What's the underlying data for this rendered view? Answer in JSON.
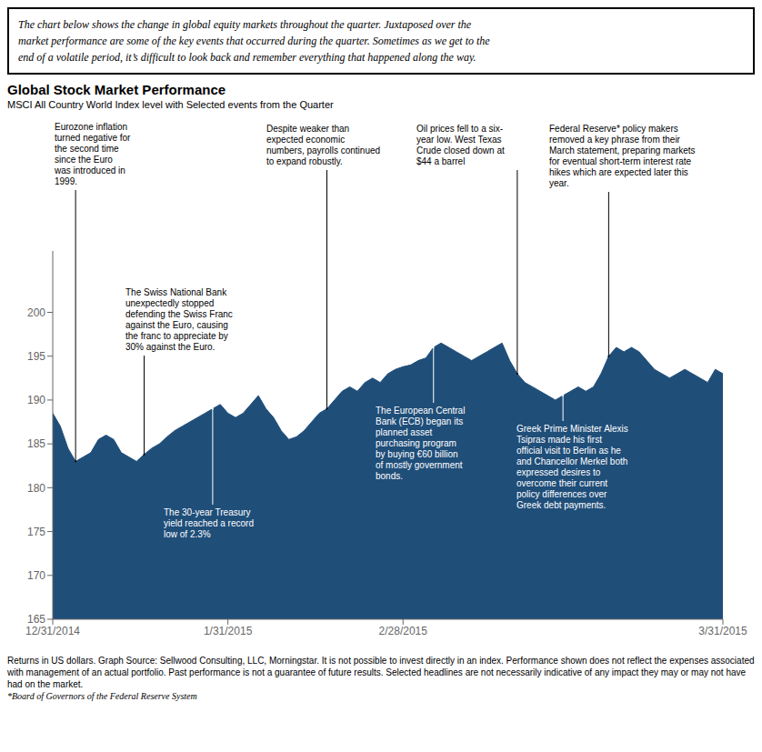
{
  "chart_data": {
    "type": "area",
    "title": "Global Stock Market Performance",
    "subtitle": "MSCI All Country World Index level with Selected events from the Quarter",
    "header": "The chart below shows the change in global equity markets throughout the quarter. Juxtaposed over the\nmarket performance are some of the key events that occurred during the quarter. Sometimes as we get to the\nend of a volatile period, it’s difficult to look back and remember everything that happened along the way.",
    "footer": "Returns in US dollars. Graph Source: Sellwood Consulting, LLC, Morningstar. It is not possible to invest directly in an index. Performance shown does not reflect the expenses associated with management of an actual portfolio. Past performance is not a guarantee of future results. Selected headlines are not necessarily indicative of any impact they may or may not have had on the market.",
    "footnote": "*Board of Governors of the Federal Reserve System",
    "color": "#1F4E79",
    "grid": false,
    "x": [
      0,
      1,
      2,
      3,
      4,
      5,
      6,
      7,
      8,
      9,
      10,
      11,
      12,
      13,
      14,
      15,
      16,
      17,
      18,
      19,
      20,
      21,
      22,
      23,
      24,
      25,
      26,
      27,
      28,
      29,
      30,
      31,
      32,
      33,
      34,
      35,
      36,
      37,
      38,
      39,
      40,
      41,
      42,
      43,
      44,
      45,
      46,
      47,
      48,
      49,
      50,
      51,
      52,
      53,
      54,
      55,
      56,
      57,
      58,
      59,
      60,
      61,
      62,
      63,
      64,
      65,
      66,
      67,
      68,
      69,
      70,
      71,
      72,
      73,
      74,
      75,
      76,
      77,
      78,
      79,
      80,
      81,
      82,
      83,
      84,
      85,
      86,
      87,
      88
    ],
    "values": [
      188.5,
      187.0,
      184.5,
      183.0,
      183.5,
      184.0,
      185.5,
      186.0,
      185.5,
      184.0,
      183.5,
      183.0,
      183.8,
      184.5,
      185.0,
      185.8,
      186.5,
      187.0,
      187.5,
      188.0,
      188.5,
      189.0,
      189.5,
      188.5,
      188.0,
      188.5,
      189.5,
      190.5,
      189.0,
      188.0,
      186.5,
      185.5,
      185.8,
      186.5,
      187.5,
      188.5,
      189.0,
      190.0,
      191.0,
      191.5,
      191.0,
      192.0,
      192.5,
      192.0,
      193.0,
      193.5,
      193.8,
      194.0,
      194.5,
      194.8,
      196.0,
      196.5,
      196.0,
      195.5,
      195.0,
      194.5,
      195.0,
      195.5,
      196.0,
      196.5,
      194.5,
      193.0,
      192.0,
      191.5,
      191.0,
      190.5,
      190.0,
      190.5,
      191.0,
      191.5,
      191.0,
      191.5,
      193.0,
      195.0,
      196.0,
      195.5,
      196.0,
      195.5,
      194.5,
      193.5,
      193.0,
      192.5,
      193.0,
      193.5,
      193.0,
      192.5,
      192.0,
      193.5,
      193.0
    ],
    "xlim": [
      0,
      88
    ],
    "xticks": [
      {
        "value": 0,
        "label": "12/31/2014"
      },
      {
        "value": 23,
        "label": "1/31/2015"
      },
      {
        "value": 46,
        "label": "2/28/2015"
      },
      {
        "value": 88,
        "label": "3/31/2015"
      }
    ],
    "ylim": [
      165,
      207
    ],
    "yticks": [
      165,
      170,
      175,
      180,
      185,
      190,
      195,
      200
    ],
    "annotations": [
      {
        "x": 3,
        "text": "Eurozone inflation\nturned negative for\nthe second time\nsince the Euro\nwas introduced in\n1999."
      },
      {
        "x": 12,
        "text": "The Swiss National Bank\nunexpectedly stopped\ndefending the Swiss Franc\nagainst the Euro, causing\nthe franc to appreciate by\n30% against the Euro."
      },
      {
        "x": 21,
        "text": "The 30-year Treasury\nyield reached a record\nlow of 2.3%"
      },
      {
        "x": 36,
        "text": "Despite weaker than\nexpected economic\nnumbers, payrolls continued\nto expand robustly."
      },
      {
        "x": 50,
        "text": "The European Central\nBank (ECB) began its\nplanned asset\npurchasing program\nby buying €60 billion\nof mostly government\nbonds."
      },
      {
        "x": 61,
        "text": "Oil prices fell to a six-\nyear low. West Texas\nCrude closed down at\n$44 a barrel"
      },
      {
        "x": 67,
        "text": "Greek Prime Minister Alexis\nTsipras made his first\nofficial visit to Berlin as he\nand Chancellor Merkel both\nexpressed desires to\novercome their current\npolicy differences over\nGreek debt payments."
      },
      {
        "x": 73,
        "text": "Federal Reserve* policy makers\nremoved a key phrase from their\nMarch statement, preparing markets\nfor eventual short-term interest rate\nhikes which are expected later this\nyear."
      }
    ]
  }
}
